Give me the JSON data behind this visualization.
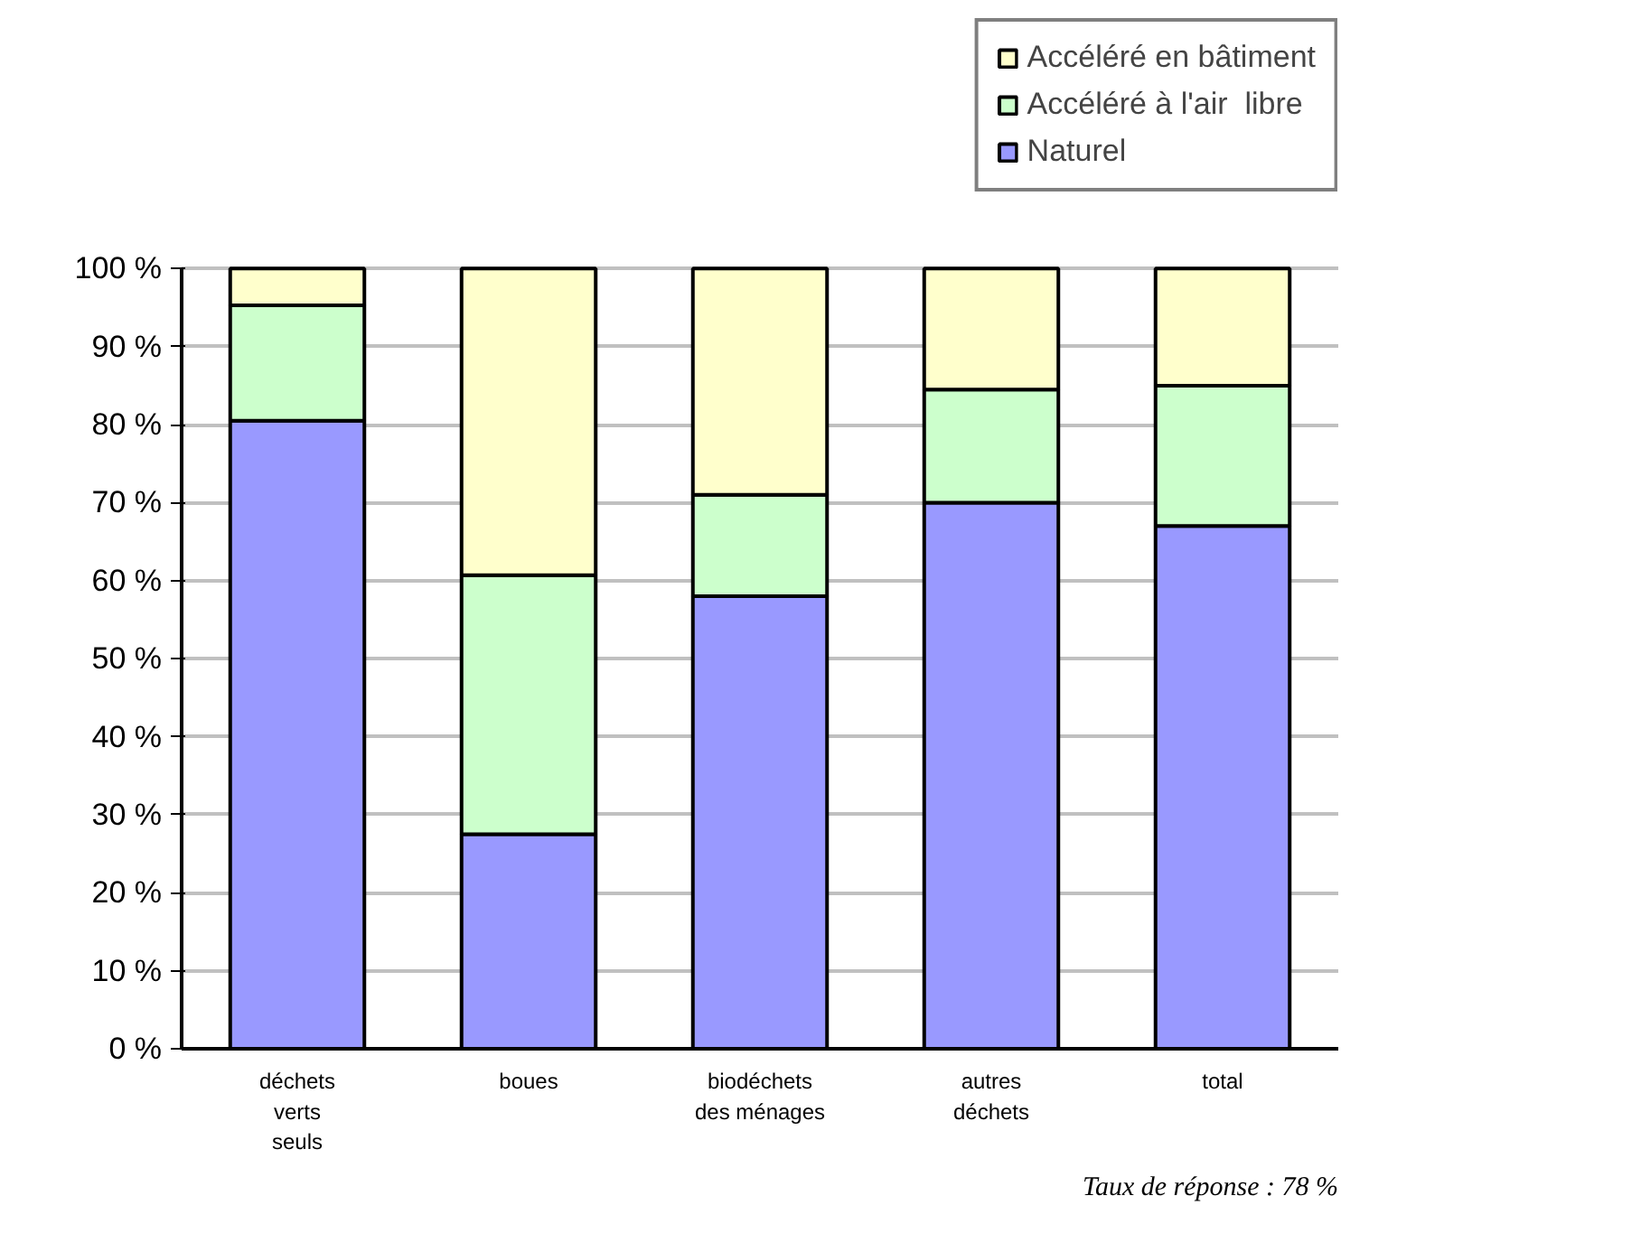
{
  "chart_data": {
    "type": "bar",
    "stacked": true,
    "categories": [
      "déchets\nverts\nseuls",
      "boues",
      "biodéchets\ndes ménages",
      "autres\ndéchets",
      "total"
    ],
    "series": [
      {
        "name": "Naturel",
        "color": "#9999ff",
        "values": [
          80.5,
          27.5,
          58,
          70,
          67
        ]
      },
      {
        "name": "Accéléré à l'air  libre",
        "color": "#ccffcc",
        "values": [
          14.8,
          33.2,
          13,
          14.5,
          18
        ]
      },
      {
        "name": "Accéléré en bâtiment",
        "color": "#ffffcc",
        "values": [
          4.7,
          39.3,
          29,
          15.5,
          15
        ]
      }
    ],
    "ylim": [
      0,
      100
    ],
    "yticks": [
      {
        "value": 0,
        "label": "0 %"
      },
      {
        "value": 10,
        "label": "10 %"
      },
      {
        "value": 20,
        "label": "20 %"
      },
      {
        "value": 30,
        "label": "30 %"
      },
      {
        "value": 40,
        "label": "40 %"
      },
      {
        "value": 50,
        "label": "50 %"
      },
      {
        "value": 60,
        "label": "60 %"
      },
      {
        "value": 70,
        "label": "70 %"
      },
      {
        "value": 80,
        "label": "80 %"
      },
      {
        "value": 90,
        "label": "90 %"
      },
      {
        "value": 100,
        "label": "100 %"
      }
    ],
    "grid": "y",
    "legend": "top right",
    "annotations": [
      "Taux de réponse : 78 %"
    ]
  }
}
